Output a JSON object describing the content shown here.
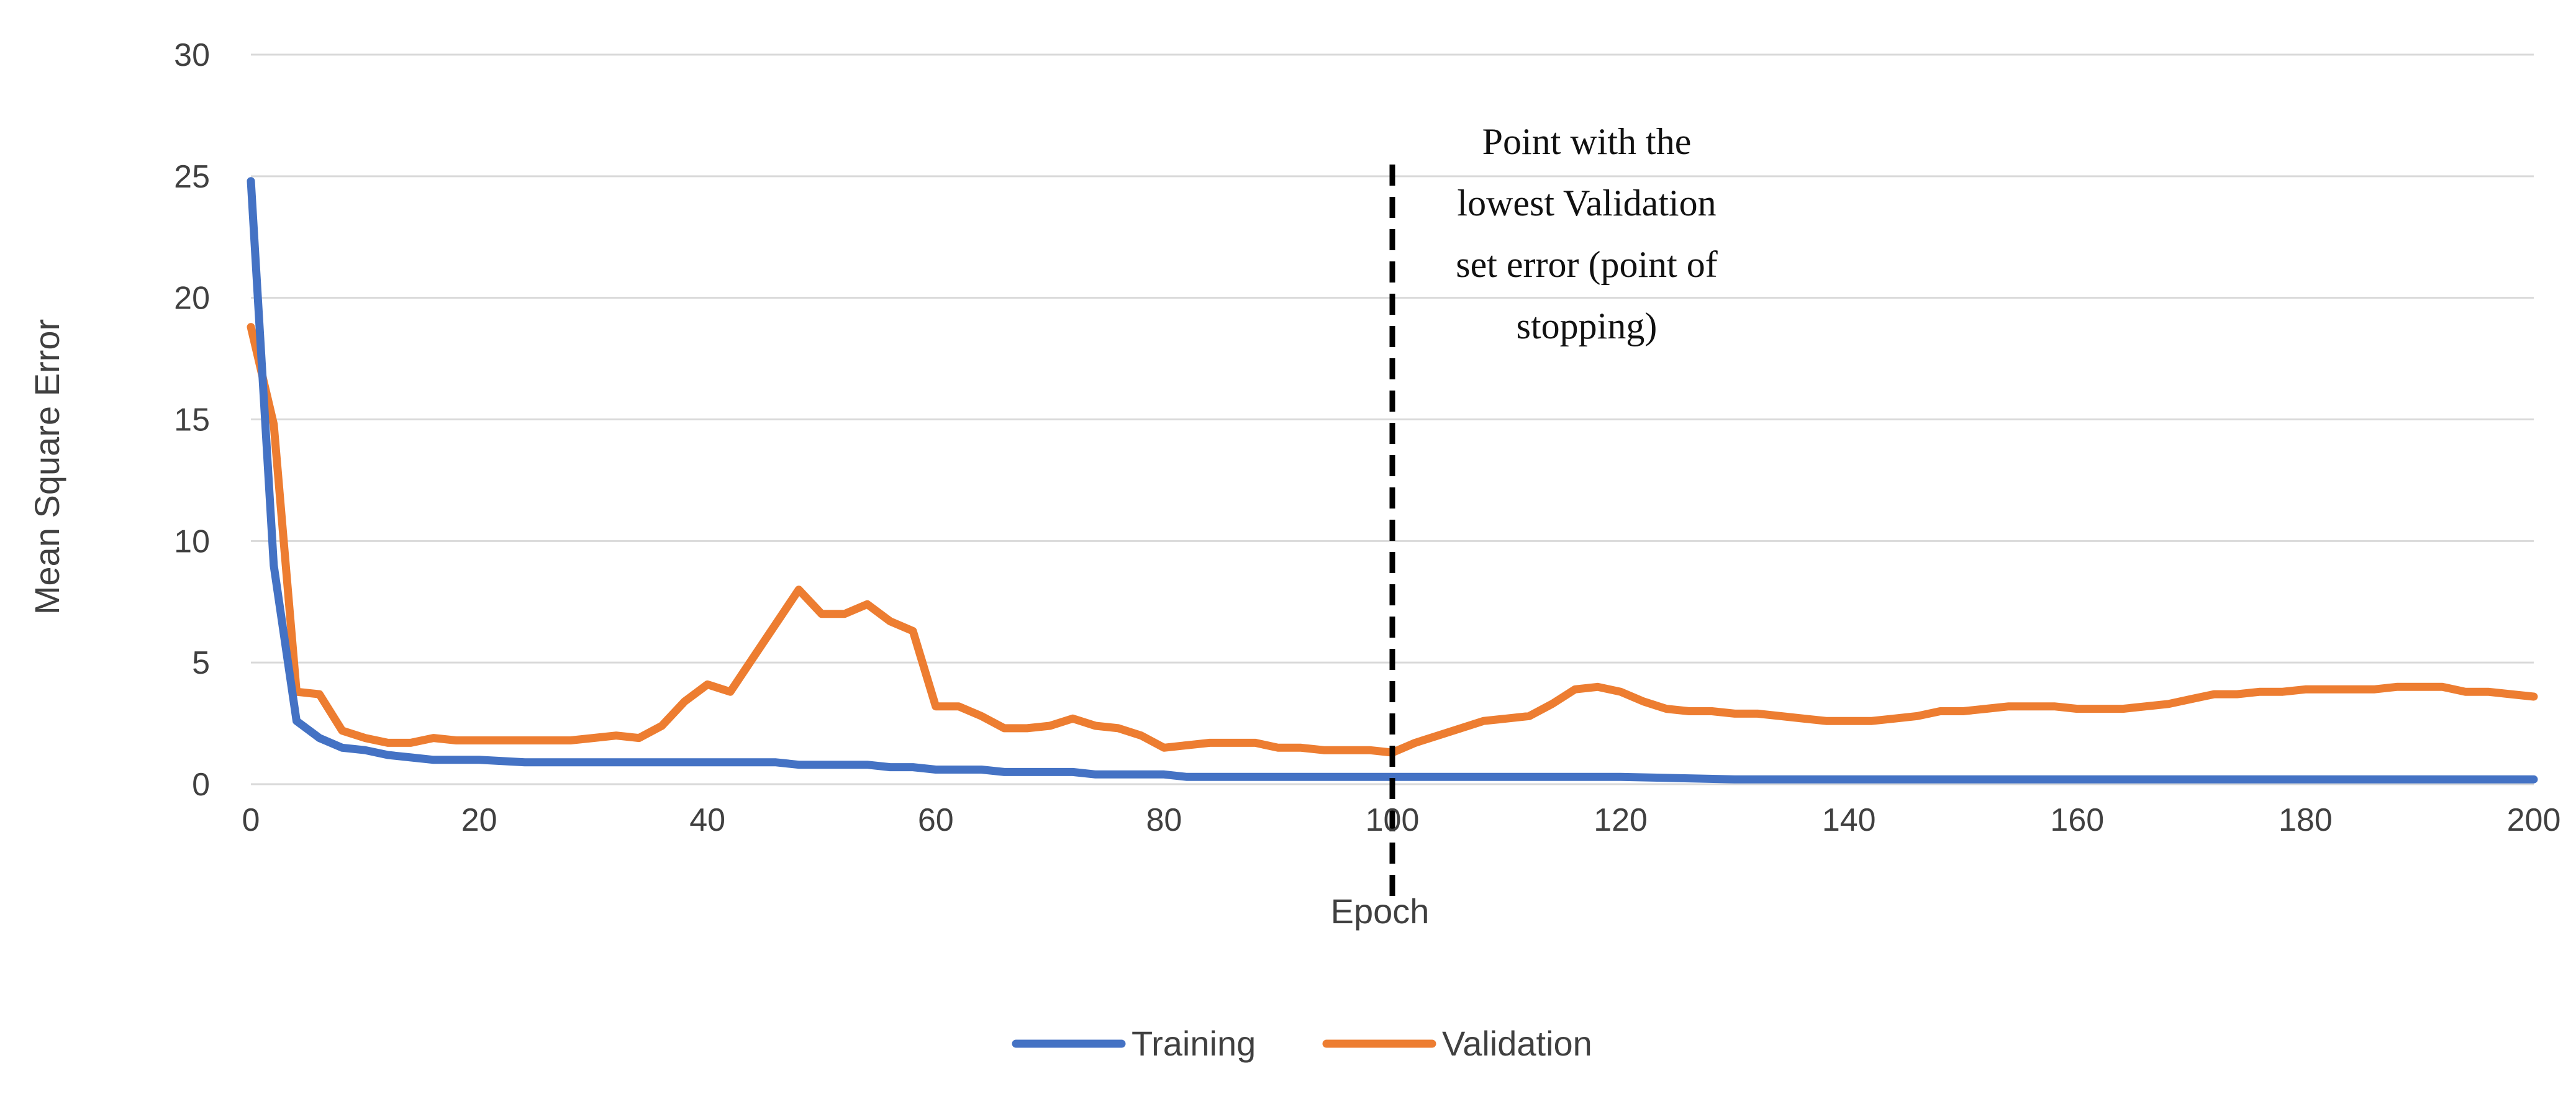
{
  "chart_data": {
    "type": "line",
    "title": "",
    "xlabel": "Epoch",
    "ylabel": "Mean Square Error",
    "xlim": [
      0,
      200
    ],
    "ylim": [
      0,
      30
    ],
    "xticks": [
      0,
      20,
      40,
      60,
      80,
      100,
      120,
      140,
      160,
      180,
      200
    ],
    "yticks": [
      0,
      5,
      10,
      15,
      20,
      25,
      30
    ],
    "grid": "horizontal",
    "legend_position": "bottom",
    "series": [
      {
        "name": "Training",
        "color": "#4472C4",
        "x": [
          0,
          2,
          4,
          6,
          8,
          10,
          12,
          14,
          16,
          20,
          24,
          28,
          32,
          36,
          40,
          44,
          46,
          48,
          50,
          54,
          56,
          58,
          60,
          64,
          66,
          70,
          72,
          74,
          76,
          80,
          82,
          90,
          100,
          110,
          120,
          130,
          140,
          150,
          160,
          170,
          180,
          190,
          200
        ],
        "values": [
          24.8,
          9.0,
          2.6,
          1.9,
          1.5,
          1.4,
          1.2,
          1.1,
          1.0,
          1.0,
          0.9,
          0.9,
          0.9,
          0.9,
          0.9,
          0.9,
          0.9,
          0.8,
          0.8,
          0.8,
          0.7,
          0.7,
          0.6,
          0.6,
          0.5,
          0.5,
          0.5,
          0.4,
          0.4,
          0.4,
          0.3,
          0.3,
          0.3,
          0.3,
          0.3,
          0.2,
          0.2,
          0.2,
          0.2,
          0.2,
          0.2,
          0.2,
          0.2
        ]
      },
      {
        "name": "Validation",
        "color": "#ED7D31",
        "x": [
          0,
          2,
          4,
          6,
          8,
          10,
          12,
          14,
          16,
          18,
          20,
          22,
          24,
          26,
          28,
          30,
          32,
          34,
          36,
          38,
          40,
          42,
          44,
          46,
          48,
          50,
          52,
          54,
          56,
          58,
          60,
          62,
          64,
          66,
          68,
          70,
          72,
          74,
          76,
          78,
          80,
          82,
          84,
          86,
          88,
          90,
          92,
          94,
          96,
          98,
          100,
          102,
          104,
          106,
          108,
          110,
          112,
          114,
          116,
          118,
          120,
          122,
          124,
          126,
          128,
          130,
          132,
          134,
          136,
          138,
          140,
          142,
          144,
          146,
          148,
          150,
          152,
          154,
          156,
          158,
          160,
          162,
          164,
          166,
          168,
          170,
          172,
          174,
          176,
          178,
          180,
          182,
          184,
          186,
          188,
          190,
          192,
          194,
          196,
          198,
          200
        ],
        "values": [
          18.8,
          14.8,
          3.8,
          3.7,
          2.2,
          1.9,
          1.7,
          1.7,
          1.9,
          1.8,
          1.8,
          1.8,
          1.8,
          1.8,
          1.8,
          1.9,
          2.0,
          1.9,
          2.4,
          3.4,
          4.1,
          3.8,
          5.2,
          6.6,
          8.0,
          7.0,
          7.0,
          7.4,
          6.7,
          6.3,
          3.2,
          3.2,
          2.8,
          2.3,
          2.3,
          2.4,
          2.7,
          2.4,
          2.3,
          2.0,
          1.5,
          1.6,
          1.7,
          1.7,
          1.7,
          1.5,
          1.5,
          1.4,
          1.4,
          1.4,
          1.3,
          1.7,
          2.0,
          2.3,
          2.6,
          2.7,
          2.8,
          3.3,
          3.9,
          4.0,
          3.8,
          3.4,
          3.1,
          3.0,
          3.0,
          2.9,
          2.9,
          2.8,
          2.7,
          2.6,
          2.6,
          2.6,
          2.7,
          2.8,
          3.0,
          3.0,
          3.1,
          3.2,
          3.2,
          3.2,
          3.1,
          3.1,
          3.1,
          3.2,
          3.3,
          3.5,
          3.7,
          3.7,
          3.8,
          3.8,
          3.9,
          3.9,
          3.9,
          3.9,
          4.0,
          4.0,
          4.0,
          3.8,
          3.8,
          3.7,
          3.6
        ]
      }
    ],
    "annotation": {
      "x": 100,
      "lines": [
        "Point with the",
        "lowest Validation",
        "set error (point of",
        "stopping)"
      ]
    }
  }
}
